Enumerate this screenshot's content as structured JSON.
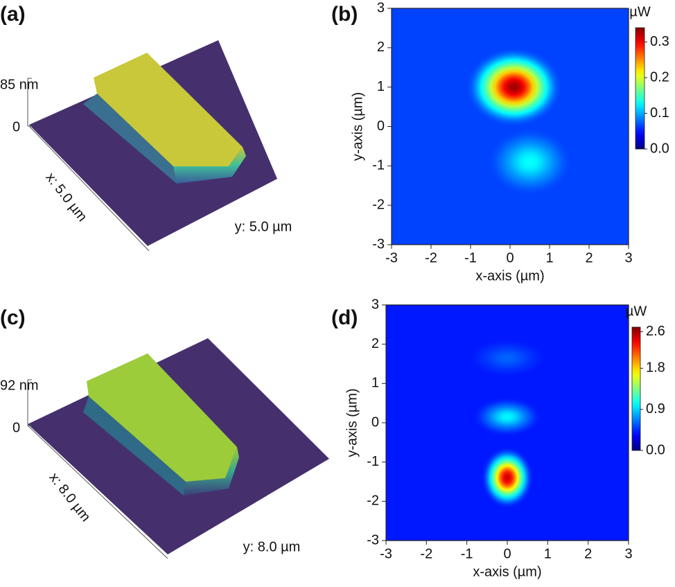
{
  "panels": [
    {
      "label": "(a)",
      "height": "85 nm",
      "zero": "0",
      "x_axis": "x: 5.0 µm",
      "y_axis": "y: 5.0 µm"
    },
    {
      "label": "(b)",
      "type": "heatmap",
      "xlabel": "x-axis (µm)",
      "ylabel": "y-axis (µm)",
      "xlim": [
        -3,
        3
      ],
      "xticks": [
        -3,
        -2,
        -1,
        0,
        1,
        2,
        3
      ],
      "ylim": [
        -3,
        3
      ],
      "yticks": [
        -3,
        -2,
        -1,
        0,
        1,
        2,
        3
      ],
      "background": 0.065,
      "spots": [
        {
          "x": 0.1,
          "y": 1.0,
          "sx": 0.85,
          "sy": 0.7,
          "value": 0.33
        },
        {
          "x": 0.5,
          "y": -0.9,
          "sx": 0.75,
          "sy": 0.6,
          "value": 0.13
        }
      ],
      "colorbar": {
        "unit": "µW",
        "lim": [
          0,
          0.34
        ],
        "ticks": [
          {
            "value": 0,
            "label": "0.0"
          },
          0.1,
          0.2,
          0.3
        ]
      }
    },
    {
      "label": "(c)",
      "height": "92 nm",
      "zero": "0",
      "x_axis": "x: 8.0 µm",
      "y_axis": "y: 8.0 µm"
    },
    {
      "label": "(d)",
      "type": "heatmap",
      "xlabel": "x-axis (µm)",
      "ylabel": "y-axis (µm)",
      "xlim": [
        -3,
        3
      ],
      "xticks": [
        -3,
        -2,
        -1,
        0,
        1,
        2,
        3
      ],
      "ylim": [
        -3,
        3
      ],
      "yticks": [
        -3,
        -2,
        -1,
        0,
        1,
        2,
        3
      ],
      "background": 0.4,
      "spots": [
        {
          "x": 0.0,
          "y": -1.4,
          "sx": 0.45,
          "sy": 0.55,
          "value": 2.5
        },
        {
          "x": 0.0,
          "y": 0.15,
          "sx": 0.6,
          "sy": 0.35,
          "value": 1.0
        },
        {
          "x": 0.0,
          "y": 1.65,
          "sx": 0.7,
          "sy": 0.35,
          "value": 0.6
        }
      ],
      "colorbar": {
        "unit": "µW",
        "lim": [
          0,
          2.7
        ],
        "ticks": [
          {
            "value": 0,
            "label": "0.0"
          },
          0.9,
          1.8,
          2.6
        ]
      }
    }
  ]
}
